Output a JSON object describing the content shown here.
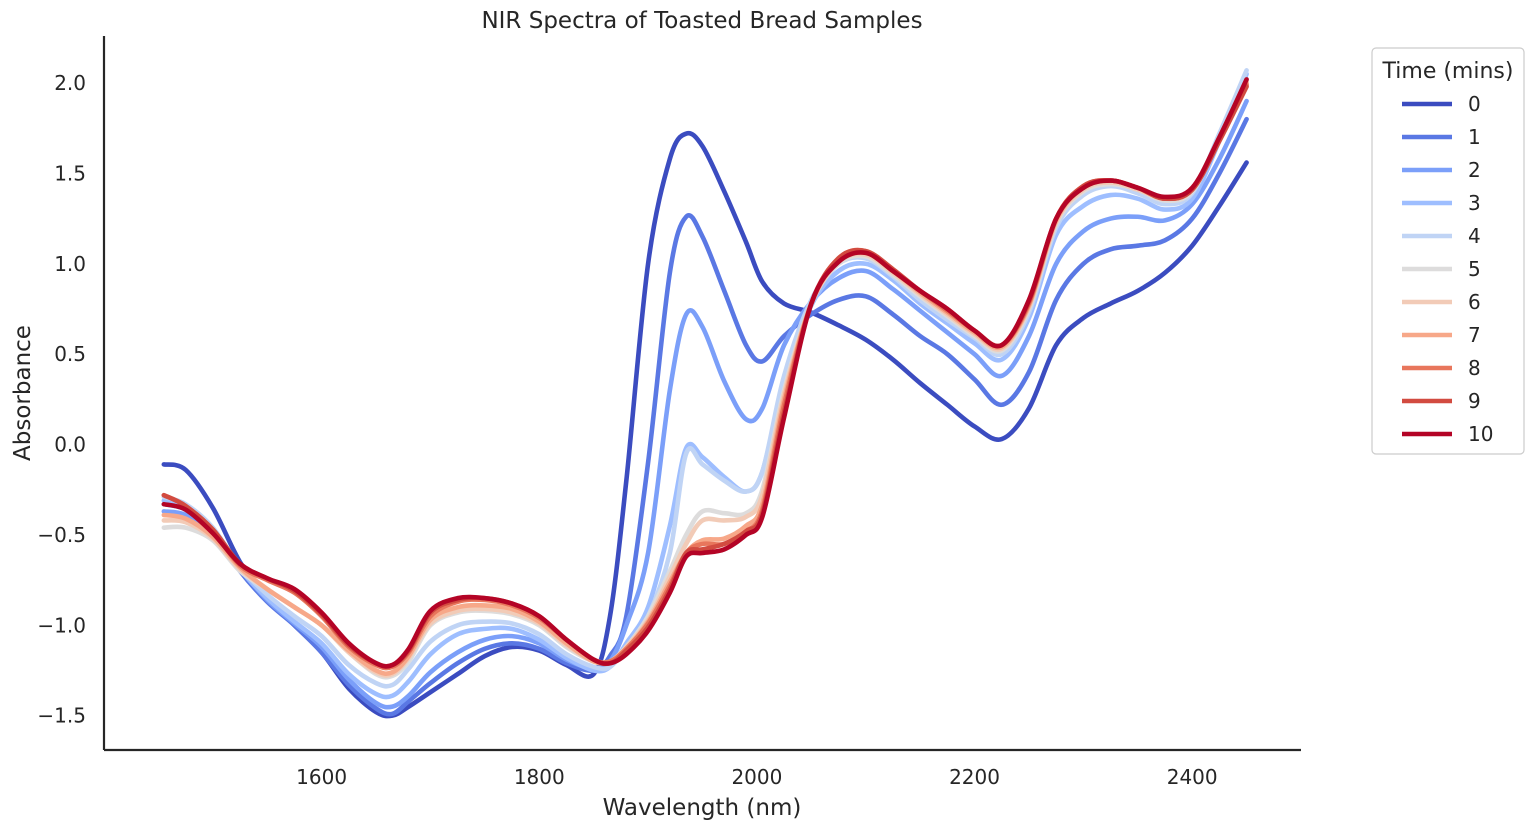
{
  "chart_data": {
    "type": "line",
    "title": "NIR Spectra of Toasted Bread Samples",
    "xlabel": "Wavelength (nm)",
    "ylabel": "Absorbance",
    "xlim": [
      1400,
      2500
    ],
    "ylim": [
      -1.69,
      2.26
    ],
    "xticks": [
      1600,
      1800,
      2000,
      2200,
      2400
    ],
    "xtick_labels": [
      "1600",
      "1800",
      "2000",
      "2200",
      "2400"
    ],
    "yticks": [
      -1.5,
      -1.0,
      -0.5,
      0.0,
      0.5,
      1.0,
      1.5,
      2.0
    ],
    "ytick_labels": [
      "−1.5",
      "−1.0",
      "−0.5",
      "0.0",
      "0.5",
      "1.0",
      "1.5",
      "2.0"
    ],
    "grid": false,
    "legend": {
      "title": "Time (mins)",
      "placement": "outside-top-right"
    },
    "x": [
      1455,
      1475,
      1500,
      1525,
      1550,
      1575,
      1600,
      1625,
      1650,
      1665,
      1680,
      1700,
      1725,
      1750,
      1775,
      1800,
      1825,
      1850,
      1865,
      1880,
      1900,
      1920,
      1935,
      1950,
      1970,
      1990,
      2005,
      2025,
      2050,
      2075,
      2100,
      2125,
      2150,
      2175,
      2200,
      2225,
      2250,
      2275,
      2300,
      2325,
      2350,
      2375,
      2400,
      2425,
      2450
    ],
    "series": [
      {
        "name": "0",
        "color": "#3b4cc0",
        "values": [
          -0.11,
          -0.14,
          -0.35,
          -0.65,
          -0.85,
          -1.0,
          -1.15,
          -1.35,
          -1.48,
          -1.5,
          -1.45,
          -1.37,
          -1.27,
          -1.17,
          -1.12,
          -1.14,
          -1.22,
          -1.27,
          -0.95,
          -0.2,
          1.0,
          1.58,
          1.72,
          1.65,
          1.4,
          1.12,
          0.9,
          0.78,
          0.73,
          0.66,
          0.58,
          0.47,
          0.34,
          0.22,
          0.1,
          0.03,
          0.2,
          0.55,
          0.7,
          0.78,
          0.85,
          0.95,
          1.1,
          1.32,
          1.56
        ]
      },
      {
        "name": "1",
        "color": "#5a78e4",
        "values": [
          -0.33,
          -0.36,
          -0.48,
          -0.7,
          -0.87,
          -1.0,
          -1.15,
          -1.33,
          -1.46,
          -1.49,
          -1.42,
          -1.32,
          -1.21,
          -1.13,
          -1.1,
          -1.13,
          -1.21,
          -1.25,
          -1.17,
          -0.95,
          -0.1,
          0.95,
          1.26,
          1.15,
          0.85,
          0.55,
          0.46,
          0.6,
          0.72,
          0.8,
          0.82,
          0.72,
          0.6,
          0.5,
          0.36,
          0.22,
          0.4,
          0.8,
          1.0,
          1.08,
          1.1,
          1.13,
          1.25,
          1.5,
          1.8
        ]
      },
      {
        "name": "2",
        "color": "#7b9ff9",
        "values": [
          -0.37,
          -0.39,
          -0.5,
          -0.69,
          -0.86,
          -0.99,
          -1.12,
          -1.3,
          -1.43,
          -1.45,
          -1.39,
          -1.26,
          -1.15,
          -1.08,
          -1.06,
          -1.1,
          -1.19,
          -1.24,
          -1.2,
          -1.0,
          -0.6,
          0.3,
          0.72,
          0.65,
          0.35,
          0.14,
          0.2,
          0.55,
          0.79,
          0.92,
          0.96,
          0.86,
          0.74,
          0.62,
          0.5,
          0.38,
          0.6,
          1.0,
          1.18,
          1.25,
          1.26,
          1.24,
          1.33,
          1.58,
          1.9
        ]
      },
      {
        "name": "3",
        "color": "#9ebeff",
        "values": [
          -0.31,
          -0.34,
          -0.47,
          -0.69,
          -0.85,
          -0.98,
          -1.1,
          -1.27,
          -1.38,
          -1.39,
          -1.31,
          -1.16,
          -1.05,
          -1.02,
          -1.02,
          -1.08,
          -1.18,
          -1.25,
          -1.23,
          -1.1,
          -0.9,
          -0.45,
          -0.02,
          -0.07,
          -0.18,
          -0.26,
          -0.15,
          0.35,
          0.77,
          0.96,
          1.0,
          0.91,
          0.78,
          0.67,
          0.56,
          0.47,
          0.7,
          1.16,
          1.32,
          1.38,
          1.36,
          1.3,
          1.36,
          1.68,
          2.05
        ]
      },
      {
        "name": "4",
        "color": "#c0d4f5",
        "values": [
          -0.29,
          -0.33,
          -0.46,
          -0.68,
          -0.83,
          -0.95,
          -1.06,
          -1.22,
          -1.32,
          -1.33,
          -1.24,
          -1.09,
          -1.0,
          -0.98,
          -0.99,
          -1.05,
          -1.16,
          -1.23,
          -1.23,
          -1.12,
          -0.95,
          -0.6,
          -0.05,
          -0.11,
          -0.2,
          -0.26,
          -0.15,
          0.38,
          0.8,
          1.0,
          1.03,
          0.93,
          0.8,
          0.69,
          0.59,
          0.5,
          0.73,
          1.2,
          1.38,
          1.43,
          1.39,
          1.33,
          1.39,
          1.72,
          2.07
        ]
      },
      {
        "name": "5",
        "color": "#dddcdc",
        "values": [
          -0.46,
          -0.46,
          -0.53,
          -0.7,
          -0.8,
          -0.9,
          -1.0,
          -1.15,
          -1.27,
          -1.28,
          -1.2,
          -1.0,
          -0.93,
          -0.92,
          -0.94,
          -1.0,
          -1.12,
          -1.2,
          -1.2,
          -1.12,
          -0.95,
          -0.7,
          -0.5,
          -0.37,
          -0.38,
          -0.38,
          -0.25,
          0.3,
          0.78,
          1.0,
          1.04,
          0.94,
          0.82,
          0.71,
          0.6,
          0.52,
          0.75,
          1.22,
          1.4,
          1.44,
          1.41,
          1.35,
          1.4,
          1.7,
          2.02
        ]
      },
      {
        "name": "6",
        "color": "#f2cbb7",
        "values": [
          -0.42,
          -0.43,
          -0.52,
          -0.69,
          -0.8,
          -0.9,
          -1.0,
          -1.15,
          -1.26,
          -1.27,
          -1.18,
          -0.99,
          -0.92,
          -0.91,
          -0.93,
          -0.99,
          -1.11,
          -1.2,
          -1.2,
          -1.12,
          -0.97,
          -0.73,
          -0.55,
          -0.42,
          -0.42,
          -0.4,
          -0.28,
          0.28,
          0.78,
          1.01,
          1.05,
          0.95,
          0.83,
          0.72,
          0.61,
          0.53,
          0.76,
          1.23,
          1.41,
          1.45,
          1.41,
          1.36,
          1.41,
          1.7,
          2.01
        ]
      },
      {
        "name": "7",
        "color": "#f7a889",
        "values": [
          -0.39,
          -0.41,
          -0.51,
          -0.68,
          -0.8,
          -0.9,
          -1.0,
          -1.14,
          -1.25,
          -1.26,
          -1.17,
          -0.97,
          -0.9,
          -0.89,
          -0.91,
          -0.98,
          -1.1,
          -1.2,
          -1.2,
          -1.13,
          -0.98,
          -0.76,
          -0.6,
          -0.53,
          -0.52,
          -0.45,
          -0.33,
          0.25,
          0.78,
          1.02,
          1.06,
          0.96,
          0.84,
          0.73,
          0.62,
          0.54,
          0.77,
          1.24,
          1.42,
          1.46,
          1.42,
          1.36,
          1.41,
          1.69,
          2.0
        ]
      },
      {
        "name": "8",
        "color": "#e8765c",
        "values": [
          -0.28,
          -0.34,
          -0.48,
          -0.67,
          -0.75,
          -0.82,
          -0.95,
          -1.12,
          -1.22,
          -1.23,
          -1.15,
          -0.95,
          -0.87,
          -0.86,
          -0.89,
          -0.96,
          -1.08,
          -1.19,
          -1.2,
          -1.13,
          -0.99,
          -0.78,
          -0.6,
          -0.55,
          -0.55,
          -0.48,
          -0.36,
          0.22,
          0.78,
          1.03,
          1.07,
          0.96,
          0.85,
          0.74,
          0.63,
          0.55,
          0.78,
          1.25,
          1.43,
          1.46,
          1.42,
          1.36,
          1.41,
          1.68,
          1.99
        ]
      },
      {
        "name": "9",
        "color": "#d24b40",
        "values": [
          -0.28,
          -0.34,
          -0.47,
          -0.66,
          -0.74,
          -0.81,
          -0.94,
          -1.11,
          -1.21,
          -1.22,
          -1.14,
          -0.93,
          -0.86,
          -0.85,
          -0.88,
          -0.95,
          -1.08,
          -1.19,
          -1.21,
          -1.14,
          -1.01,
          -0.8,
          -0.6,
          -0.58,
          -0.55,
          -0.48,
          -0.38,
          0.18,
          0.78,
          1.03,
          1.07,
          0.97,
          0.85,
          0.75,
          0.63,
          0.55,
          0.79,
          1.25,
          1.43,
          1.46,
          1.42,
          1.36,
          1.41,
          1.68,
          1.98
        ]
      },
      {
        "name": "10",
        "color": "#b40426",
        "values": [
          -0.33,
          -0.36,
          -0.49,
          -0.66,
          -0.74,
          -0.8,
          -0.93,
          -1.1,
          -1.21,
          -1.22,
          -1.13,
          -0.92,
          -0.85,
          -0.85,
          -0.88,
          -0.95,
          -1.08,
          -1.19,
          -1.21,
          -1.16,
          -1.03,
          -0.82,
          -0.62,
          -0.6,
          -0.58,
          -0.5,
          -0.4,
          0.15,
          0.78,
          1.01,
          1.06,
          0.96,
          0.85,
          0.75,
          0.63,
          0.55,
          0.8,
          1.25,
          1.42,
          1.46,
          1.42,
          1.37,
          1.42,
          1.7,
          2.02
        ]
      }
    ]
  }
}
